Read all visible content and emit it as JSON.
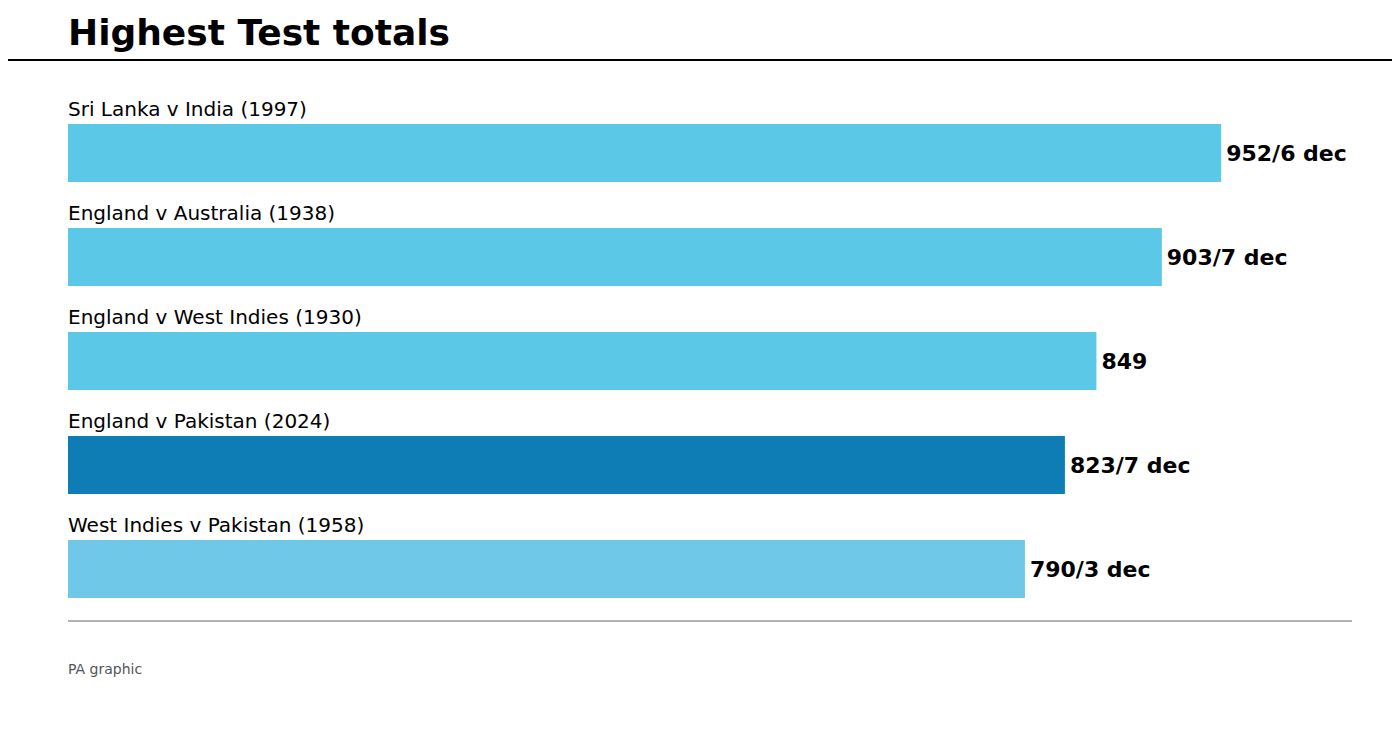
{
  "chart_data": {
    "type": "bar",
    "orientation": "horizontal",
    "title": "Highest Test totals",
    "categories": [
      "Sri Lanka v India (1997)",
      "England v Australia (1938)",
      "England v West Indies (1930)",
      "England v Pakistan (2024)",
      "West Indies v Pakistan (1958)"
    ],
    "values": [
      952,
      903,
      849,
      823,
      790
    ],
    "value_labels": [
      "952/6 dec",
      "903/7 dec",
      "849",
      "823/7 dec",
      "790/3 dec"
    ],
    "colors": [
      "#5BC8E8",
      "#5BC8E8",
      "#5BC8E8",
      "#0E7DB5",
      "#70C8E8"
    ],
    "data_labels": true,
    "xlim": [
      0,
      1060
    ],
    "tick_labels": false,
    "grid": false,
    "annotations": [
      "PA graphic"
    ]
  }
}
